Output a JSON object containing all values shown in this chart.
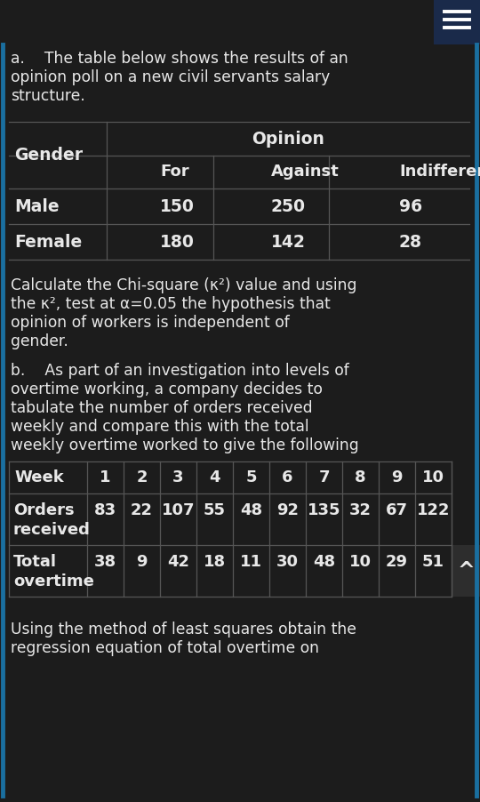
{
  "bg_color": "#1c1c1c",
  "text_color": "#e8e8e8",
  "table_line_color": "#555555",
  "accent_color": "#1a6fa0",
  "menu_bg": "#1a2a4a",
  "para_a_lines": [
    "a.    The table below shows the results of an",
    "opinion poll on a new civil servants salary",
    "structure."
  ],
  "table1_gender_label": "Gender",
  "table1_opinion_label": "Opinion",
  "table1_subheaders": [
    "For",
    "Against",
    "Indifferent"
  ],
  "table1_rows": [
    [
      "Male",
      "150",
      "250",
      "96"
    ],
    [
      "Female",
      "180",
      "142",
      "28"
    ]
  ],
  "chi_lines": [
    "Calculate the Chi-square (κ²) value and using",
    "the κ², test at α=0.05 the hypothesis that",
    "opinion of workers is independent of",
    "gender."
  ],
  "para_b_lines": [
    "b.    As part of an investigation into levels of",
    "overtime working, a company decides to",
    "tabulate the number of orders received",
    "weekly and compare this with the total",
    "weekly overtime worked to give the following"
  ],
  "week_vals": [
    "1",
    "2",
    "3",
    "4",
    "5",
    "6",
    "7",
    "8",
    "9",
    "10"
  ],
  "orders_vals": [
    "83",
    "22",
    "107",
    "55",
    "48",
    "92",
    "135",
    "32",
    "67",
    "122"
  ],
  "total_vals": [
    "38",
    "9",
    "42",
    "18",
    "11",
    "30",
    "48",
    "10",
    "29",
    "51"
  ],
  "bottom_lines": [
    "Using the method of least squares obtain the",
    "regression equation of total overtime on"
  ],
  "figsize": [
    5.4,
    9.02
  ],
  "dpi": 100
}
